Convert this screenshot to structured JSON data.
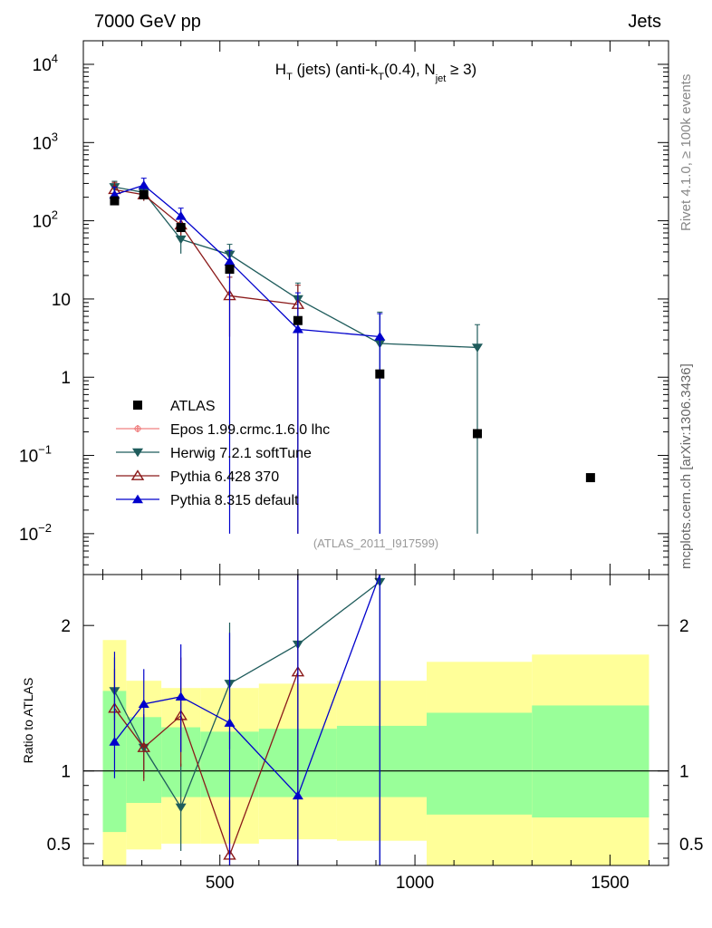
{
  "header": {
    "left": "7000 GeV pp",
    "right": "Jets"
  },
  "side_labels": {
    "rivet": "Rivet 4.1.0, ≥ 100k events",
    "mcplots": "mcplots.cern.ch [arXiv:1306.3436]"
  },
  "chart_data": {
    "type": "scatter",
    "title": {
      "main": "H",
      "sub_T": "T",
      "mid": " (jets) (anti-k",
      "sub_T2": "T",
      "after": "(0.4), N",
      "sub_jet": "jet",
      "end": " ≥ 3)"
    },
    "analysis_tag": "(ATLAS_2011_I917599)",
    "xlim": [
      150,
      1650
    ],
    "ylim_main": [
      0.003,
      20000
    ],
    "ylim_ratio": [
      0.35,
      2.35
    ],
    "ylabel_ratio": "Ratio to ATLAS",
    "x_ticks": [
      "500",
      "1000",
      "1500"
    ],
    "x_tick_values": [
      500,
      1000,
      1500
    ],
    "y_ticks_main": [
      {
        "v": 10000,
        "base": "10",
        "exp": "4"
      },
      {
        "v": 1000,
        "base": "10",
        "exp": "3"
      },
      {
        "v": 100,
        "base": "10",
        "exp": "2"
      },
      {
        "v": 10,
        "base": "10",
        "exp": ""
      },
      {
        "v": 1,
        "base": "1",
        "exp": ""
      },
      {
        "v": 0.1,
        "base": "10",
        "exp": "−1"
      },
      {
        "v": 0.01,
        "base": "10",
        "exp": "−2"
      }
    ],
    "y_ticks_ratio": [
      {
        "v": 2,
        "label": "2"
      },
      {
        "v": 1,
        "label": "1"
      },
      {
        "v": 0.5,
        "label": "0.5"
      }
    ],
    "bands": [
      {
        "x0": 200,
        "x1": 260,
        "y_lo": 0.35,
        "y_hi": 1.9,
        "g_lo": 0.58,
        "g_hi": 1.55
      },
      {
        "x0": 260,
        "x1": 350,
        "y_lo": 0.46,
        "y_hi": 1.62,
        "g_lo": 0.78,
        "g_hi": 1.37
      },
      {
        "x0": 350,
        "x1": 450,
        "y_lo": 0.5,
        "y_hi": 1.57,
        "g_lo": 0.82,
        "g_hi": 1.3
      },
      {
        "x0": 450,
        "x1": 600,
        "y_lo": 0.5,
        "y_hi": 1.57,
        "g_lo": 0.82,
        "g_hi": 1.27
      },
      {
        "x0": 600,
        "x1": 800,
        "y_lo": 0.53,
        "y_hi": 1.6,
        "g_lo": 0.82,
        "g_hi": 1.29
      },
      {
        "x0": 800,
        "x1": 1030,
        "y_lo": 0.52,
        "y_hi": 1.62,
        "g_lo": 0.82,
        "g_hi": 1.31
      },
      {
        "x0": 1030,
        "x1": 1300,
        "y_lo": 0.35,
        "y_hi": 1.75,
        "g_lo": 0.7,
        "g_hi": 1.4
      },
      {
        "x0": 1300,
        "x1": 1600,
        "y_lo": 0.35,
        "y_hi": 1.8,
        "g_lo": 0.68,
        "g_hi": 1.45
      }
    ],
    "atlas": {
      "name": "ATLAS",
      "x": [
        230,
        305,
        400,
        525,
        700,
        910,
        1160,
        1450
      ],
      "y": [
        180,
        215,
        82,
        24,
        5.3,
        1.1,
        0.19,
        0.052
      ]
    },
    "series": [
      {
        "name": "Epos 1.99.crmc.1.6.0 lhc",
        "color": "#f08080",
        "marker": "cross",
        "x": [],
        "y": [],
        "ratio": []
      },
      {
        "name": "Herwig 7.2.1 softTune",
        "color": "#1f5c5c",
        "marker": "tri-down",
        "x": [
          230,
          305,
          400,
          525,
          700,
          910,
          1160
        ],
        "y": [
          270,
          230,
          58,
          37,
          10,
          2.7,
          2.4
        ],
        "err_lo": [
          200,
          180,
          38,
          26,
          0.01,
          0.01,
          0.01
        ],
        "err_hi": [
          320,
          280,
          80,
          50,
          16,
          6.8,
          4.7
        ],
        "ratio": [
          1.55,
          1.16,
          0.75,
          1.6,
          1.87,
          2.3
        ],
        "ratio_err_lo": [
          1.35,
          0.95,
          0.45,
          1.15,
          0.35,
          0.35
        ],
        "ratio_err_hi": [
          1.78,
          1.38,
          1.05,
          2.02,
          2.35,
          2.35
        ]
      },
      {
        "name": "Pythia 6.428 370",
        "color": "#8b1a1a",
        "marker": "tri-up-open",
        "x": [
          230,
          305,
          400,
          525,
          700
        ],
        "y": [
          250,
          215,
          88,
          11,
          8.5
        ],
        "err_lo": [
          180,
          180,
          65,
          3.3,
          0.01
        ],
        "err_hi": [
          310,
          260,
          115,
          19,
          15
        ],
        "ratio": [
          1.43,
          1.16,
          1.38,
          0.42,
          1.68
        ],
        "ratio_err_lo": [
          1.2,
          0.93,
          1.03,
          0.35,
          0.35
        ],
        "ratio_err_hi": [
          1.7,
          1.39,
          1.78,
          0.8,
          2.35
        ]
      },
      {
        "name": "Pythia 8.315 default",
        "color": "#0000cc",
        "marker": "tri-up",
        "x": [
          230,
          305,
          400,
          525,
          700,
          910
        ],
        "y": [
          215,
          285,
          115,
          30,
          4.1,
          3.3
        ],
        "err_lo": [
          160,
          230,
          90,
          0.01,
          0.01,
          0.01
        ],
        "err_hi": [
          270,
          350,
          145,
          42,
          12,
          6.5
        ],
        "ratio": [
          1.2,
          1.46,
          1.51,
          1.33,
          0.83,
          2.35
        ],
        "ratio_err_lo": [
          0.95,
          1.2,
          1.13,
          0.35,
          0.35,
          0.35
        ],
        "ratio_err_hi": [
          1.82,
          1.7,
          1.87,
          1.95,
          2.35,
          2.35
        ]
      }
    ]
  }
}
